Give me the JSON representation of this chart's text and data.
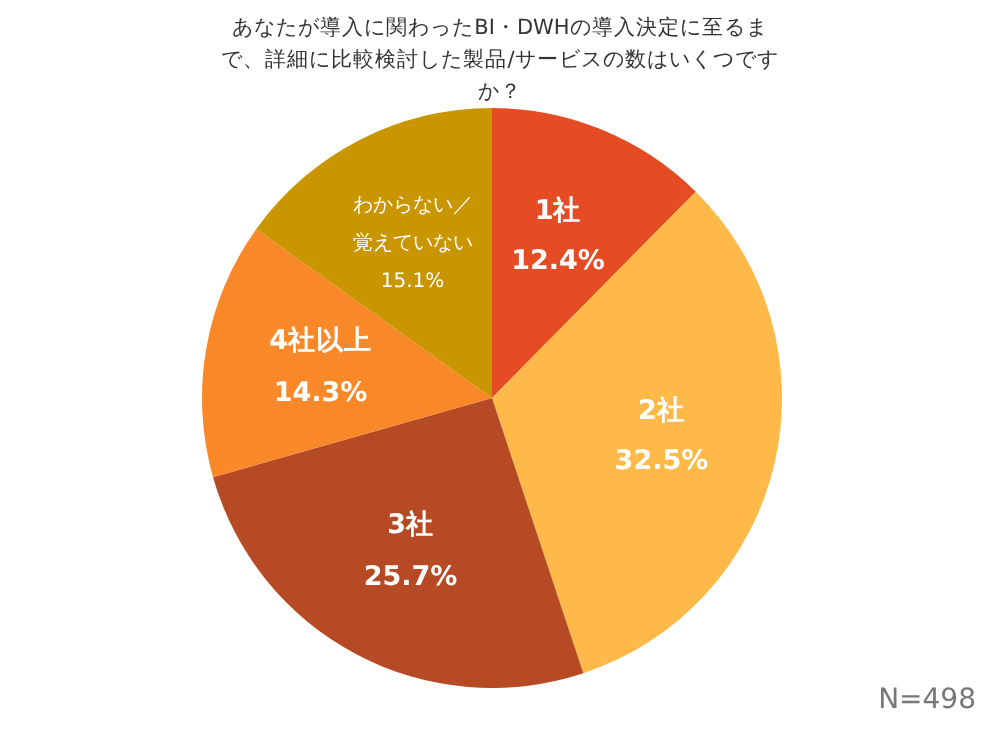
{
  "chart_data": {
    "type": "pie",
    "title": "あなたが導入に関わったBI・DWHの導入決定に至るまで、詳細に比較検討した製品/サービスの数はいくつですか？",
    "categories": [
      "1社",
      "2社",
      "3社",
      "4社以上",
      "わからない／覚えていない"
    ],
    "values": [
      12.4,
      32.5,
      25.7,
      14.3,
      15.1
    ],
    "value_labels": [
      "12.4%",
      "32.5%",
      "25.7%",
      "14.3%",
      "15.1%"
    ],
    "colors": [
      "#e64c24",
      "#ffb948",
      "#b64a25",
      "#f98828",
      "#c99600"
    ],
    "annotations": [
      "N=498"
    ]
  }
}
